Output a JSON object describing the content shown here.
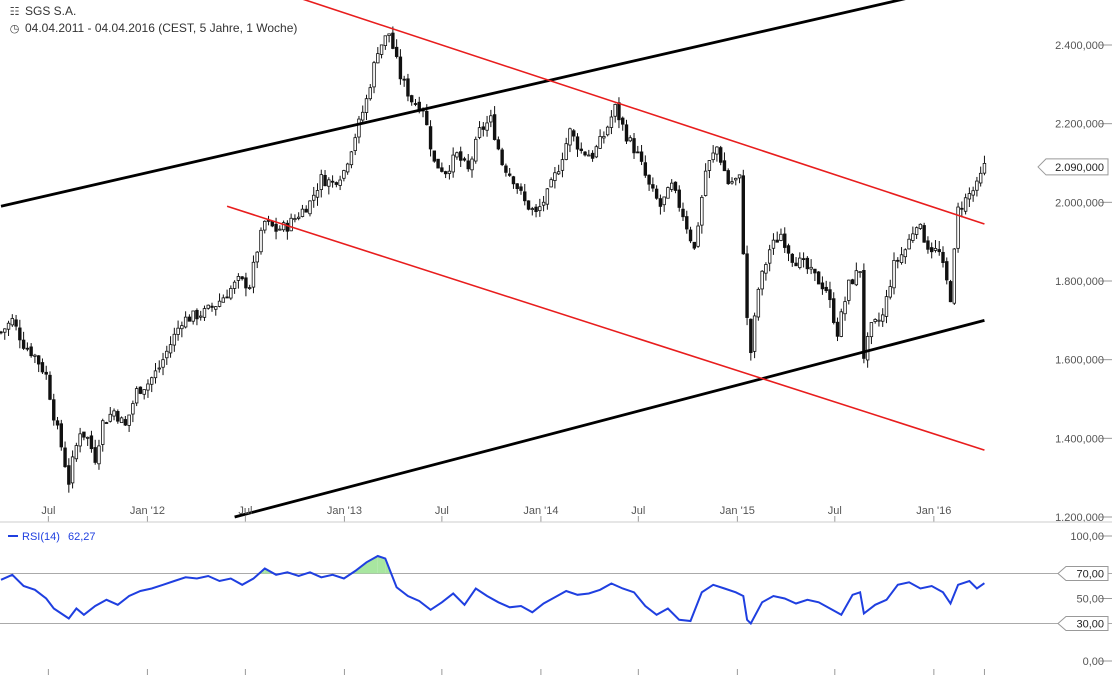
{
  "header": {
    "title": "SGS S.A.",
    "subtitle": "04.04.2011 - 04.04.2016 (CEST, 5 Jahre, 1 Woche)",
    "title_icon": "candlestick-chart-icon",
    "subtitle_icon": "clock-icon"
  },
  "colors": {
    "price": "#111111",
    "trend_black": "#000000",
    "trend_red": "#e81d1d",
    "rsi_line": "#1f3fe0",
    "rsi_overbought_fill": "#a8e6a0",
    "grid": "#aaaaaa",
    "badge_border": "#999999"
  },
  "chart_data": [
    {
      "type": "candlestick",
      "title": "SGS S.A.",
      "y_axis_ticks": [
        "2.400,000",
        "2.200,000",
        "2.000,000",
        "1.800,000",
        "1.600,000",
        "1.400,000",
        "1.200,000"
      ],
      "y_axis_tick_values": [
        2400,
        2200,
        2000,
        1800,
        1600,
        1400,
        1200
      ],
      "ylim": [
        1200,
        2520
      ],
      "x_axis_labels": [
        "Jul",
        "Jan '12",
        "Jul",
        "Jan '13",
        "Jul",
        "Jan '14",
        "Jul",
        "Jan '15",
        "Jul",
        "Jan '16"
      ],
      "x_axis_dates": [
        "2011-07-01",
        "2012-01-01",
        "2012-07-01",
        "2013-01-01",
        "2013-07-01",
        "2014-01-01",
        "2014-07-01",
        "2015-01-01",
        "2015-07-01",
        "2016-01-01"
      ],
      "xlim": [
        "2011-04-04",
        "2016-04-04"
      ],
      "last_price_label": "2.090,000",
      "last_price": 2090,
      "close_path": [
        [
          "2011-04-04",
          1670
        ],
        [
          "2011-04-25",
          1700
        ],
        [
          "2011-05-16",
          1640
        ],
        [
          "2011-06-06",
          1610
        ],
        [
          "2011-06-27",
          1560
        ],
        [
          "2011-07-11",
          1460
        ],
        [
          "2011-07-25",
          1380
        ],
        [
          "2011-08-08",
          1290
        ],
        [
          "2011-08-15",
          1340
        ],
        [
          "2011-08-29",
          1420
        ],
        [
          "2011-09-12",
          1400
        ],
        [
          "2011-09-26",
          1350
        ],
        [
          "2011-10-10",
          1440
        ],
        [
          "2011-10-31",
          1470
        ],
        [
          "2011-11-21",
          1430
        ],
        [
          "2011-12-12",
          1520
        ],
        [
          "2012-01-02",
          1540
        ],
        [
          "2012-01-23",
          1580
        ],
        [
          "2012-02-13",
          1640
        ],
        [
          "2012-03-05",
          1700
        ],
        [
          "2012-03-26",
          1710
        ],
        [
          "2012-04-16",
          1720
        ],
        [
          "2012-05-07",
          1740
        ],
        [
          "2012-05-28",
          1770
        ],
        [
          "2012-06-18",
          1800
        ],
        [
          "2012-07-09",
          1790
        ],
        [
          "2012-07-23",
          1880
        ],
        [
          "2012-08-06",
          1950
        ],
        [
          "2012-08-27",
          1930
        ],
        [
          "2012-09-17",
          1940
        ],
        [
          "2012-10-08",
          1970
        ],
        [
          "2012-10-29",
          2000
        ],
        [
          "2012-11-19",
          2060
        ],
        [
          "2012-12-10",
          2050
        ],
        [
          "2012-12-31",
          2080
        ],
        [
          "2013-01-21",
          2170
        ],
        [
          "2013-02-11",
          2260
        ],
        [
          "2013-03-04",
          2390
        ],
        [
          "2013-03-25",
          2430
        ],
        [
          "2013-04-15",
          2320
        ],
        [
          "2013-05-06",
          2260
        ],
        [
          "2013-05-27",
          2240
        ],
        [
          "2013-06-17",
          2100
        ],
        [
          "2013-07-08",
          2080
        ],
        [
          "2013-07-29",
          2120
        ],
        [
          "2013-08-19",
          2080
        ],
        [
          "2013-09-09",
          2180
        ],
        [
          "2013-09-30",
          2210
        ],
        [
          "2013-10-21",
          2100
        ],
        [
          "2013-11-11",
          2060
        ],
        [
          "2013-12-02",
          2000
        ],
        [
          "2013-12-23",
          1970
        ],
        [
          "2014-01-13",
          2020
        ],
        [
          "2014-02-03",
          2090
        ],
        [
          "2014-02-24",
          2180
        ],
        [
          "2014-03-17",
          2130
        ],
        [
          "2014-04-07",
          2120
        ],
        [
          "2014-04-28",
          2170
        ],
        [
          "2014-05-19",
          2240
        ],
        [
          "2014-06-09",
          2170
        ],
        [
          "2014-06-30",
          2120
        ],
        [
          "2014-07-21",
          2040
        ],
        [
          "2014-08-11",
          1990
        ],
        [
          "2014-09-01",
          2040
        ],
        [
          "2014-09-22",
          1970
        ],
        [
          "2014-10-13",
          1880
        ],
        [
          "2014-11-03",
          2080
        ],
        [
          "2014-11-24",
          2140
        ],
        [
          "2014-12-15",
          2050
        ],
        [
          "2015-01-05",
          2060
        ],
        [
          "2015-01-19",
          1700
        ],
        [
          "2015-01-26",
          1620
        ],
        [
          "2015-02-09",
          1780
        ],
        [
          "2015-03-02",
          1880
        ],
        [
          "2015-03-23",
          1920
        ],
        [
          "2015-04-13",
          1860
        ],
        [
          "2015-05-04",
          1840
        ],
        [
          "2015-05-25",
          1810
        ],
        [
          "2015-06-15",
          1780
        ],
        [
          "2015-07-06",
          1670
        ],
        [
          "2015-07-27",
          1790
        ],
        [
          "2015-08-17",
          1830
        ],
        [
          "2015-08-24",
          1610
        ],
        [
          "2015-09-07",
          1680
        ],
        [
          "2015-09-28",
          1710
        ],
        [
          "2015-10-19",
          1840
        ],
        [
          "2015-11-09",
          1880
        ],
        [
          "2015-11-30",
          1950
        ],
        [
          "2015-12-21",
          1890
        ],
        [
          "2016-01-11",
          1870
        ],
        [
          "2016-02-01",
          1760
        ],
        [
          "2016-02-15",
          1980
        ],
        [
          "2016-03-07",
          2020
        ],
        [
          "2016-03-21",
          2040
        ],
        [
          "2016-04-04",
          2090
        ]
      ],
      "trend_lines": [
        {
          "color": "black",
          "from": [
            "2011-04-04",
            1990
          ],
          "to": [
            "2015-11-16",
            2520
          ]
        },
        {
          "color": "black",
          "from": [
            "2012-06-11",
            1200
          ],
          "to": [
            "2016-04-04",
            1700
          ]
        },
        {
          "color": "red",
          "from": [
            "2012-10-08",
            2520
          ],
          "to": [
            "2016-04-04",
            1945
          ]
        },
        {
          "color": "red",
          "from": [
            "2012-05-28",
            1990
          ],
          "to": [
            "2016-04-04",
            1370
          ]
        }
      ]
    },
    {
      "type": "line",
      "title": "RSI(14)",
      "legend_label": "RSI(14)",
      "current_value_label": "62,27",
      "current_value": 62.27,
      "y_axis_ticks": [
        "100,00",
        "50,00",
        "0,00"
      ],
      "y_axis_tick_values": [
        100,
        50,
        0
      ],
      "level_badges": [
        "70,00",
        "30,00"
      ],
      "level_values": [
        70,
        30
      ],
      "ylim": [
        0,
        100
      ],
      "series": [
        {
          "name": "RSI(14)",
          "points": [
            [
              "2011-04-04",
              65
            ],
            [
              "2011-04-25",
              69
            ],
            [
              "2011-05-16",
              60
            ],
            [
              "2011-06-06",
              57
            ],
            [
              "2011-06-27",
              50
            ],
            [
              "2011-07-11",
              42
            ],
            [
              "2011-07-25",
              38
            ],
            [
              "2011-08-08",
              34
            ],
            [
              "2011-08-22",
              42
            ],
            [
              "2011-09-05",
              37
            ],
            [
              "2011-09-26",
              44
            ],
            [
              "2011-10-17",
              49
            ],
            [
              "2011-11-07",
              45
            ],
            [
              "2011-11-28",
              52
            ],
            [
              "2011-12-19",
              56
            ],
            [
              "2012-01-09",
              58
            ],
            [
              "2012-01-30",
              61
            ],
            [
              "2012-02-20",
              64
            ],
            [
              "2012-03-12",
              67
            ],
            [
              "2012-04-02",
              66
            ],
            [
              "2012-04-23",
              68
            ],
            [
              "2012-05-14",
              64
            ],
            [
              "2012-06-04",
              66
            ],
            [
              "2012-06-25",
              61
            ],
            [
              "2012-07-16",
              66
            ],
            [
              "2012-08-06",
              74
            ],
            [
              "2012-08-27",
              69
            ],
            [
              "2012-09-17",
              71
            ],
            [
              "2012-10-08",
              68
            ],
            [
              "2012-10-29",
              71
            ],
            [
              "2012-11-19",
              67
            ],
            [
              "2012-12-10",
              69
            ],
            [
              "2012-12-31",
              66
            ],
            [
              "2013-01-21",
              72
            ],
            [
              "2013-02-11",
              79
            ],
            [
              "2013-03-04",
              84
            ],
            [
              "2013-03-18",
              82
            ],
            [
              "2013-04-08",
              59
            ],
            [
              "2013-04-29",
              52
            ],
            [
              "2013-05-20",
              48
            ],
            [
              "2013-06-10",
              41
            ],
            [
              "2013-07-01",
              47
            ],
            [
              "2013-07-22",
              54
            ],
            [
              "2013-08-12",
              45
            ],
            [
              "2013-09-02",
              58
            ],
            [
              "2013-09-23",
              52
            ],
            [
              "2013-10-14",
              47
            ],
            [
              "2013-11-04",
              43
            ],
            [
              "2013-11-25",
              44
            ],
            [
              "2013-12-16",
              39
            ],
            [
              "2014-01-06",
              46
            ],
            [
              "2014-01-27",
              51
            ],
            [
              "2014-02-17",
              56
            ],
            [
              "2014-03-10",
              53
            ],
            [
              "2014-03-31",
              54
            ],
            [
              "2014-04-21",
              57
            ],
            [
              "2014-05-12",
              62
            ],
            [
              "2014-06-02",
              58
            ],
            [
              "2014-06-23",
              55
            ],
            [
              "2014-07-14",
              44
            ],
            [
              "2014-08-04",
              37
            ],
            [
              "2014-08-25",
              42
            ],
            [
              "2014-09-15",
              33
            ],
            [
              "2014-10-06",
              32
            ],
            [
              "2014-10-27",
              55
            ],
            [
              "2014-11-17",
              61
            ],
            [
              "2014-12-08",
              58
            ],
            [
              "2014-12-29",
              55
            ],
            [
              "2015-01-12",
              52
            ],
            [
              "2015-01-19",
              33
            ],
            [
              "2015-01-26",
              30
            ],
            [
              "2015-02-16",
              47
            ],
            [
              "2015-03-09",
              52
            ],
            [
              "2015-03-30",
              50
            ],
            [
              "2015-04-20",
              46
            ],
            [
              "2015-05-11",
              49
            ],
            [
              "2015-06-01",
              47
            ],
            [
              "2015-06-22",
              42
            ],
            [
              "2015-07-13",
              37
            ],
            [
              "2015-08-03",
              53
            ],
            [
              "2015-08-17",
              55
            ],
            [
              "2015-08-24",
              38
            ],
            [
              "2015-09-14",
              45
            ],
            [
              "2015-10-05",
              49
            ],
            [
              "2015-10-26",
              61
            ],
            [
              "2015-11-16",
              63
            ],
            [
              "2015-12-07",
              58
            ],
            [
              "2015-12-28",
              60
            ],
            [
              "2016-01-18",
              55
            ],
            [
              "2016-02-01",
              46
            ],
            [
              "2016-02-15",
              61
            ],
            [
              "2016-03-07",
              64
            ],
            [
              "2016-03-21",
              58
            ],
            [
              "2016-04-04",
              62.27
            ]
          ]
        }
      ]
    }
  ]
}
